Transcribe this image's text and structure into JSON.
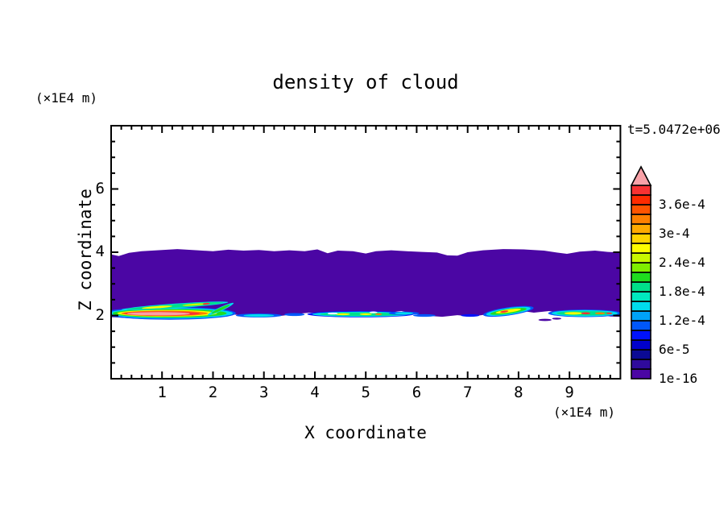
{
  "figure": {
    "title": "density of cloud",
    "time_label": "t=5.0472e+06",
    "background": "#ffffff",
    "text_color": "#000000",
    "frame_color": "#000000"
  },
  "axes": {
    "x": {
      "label": "X coordinate",
      "unit": "(×1E4 m)",
      "range": [
        0,
        10
      ],
      "ticks": [
        1,
        2,
        3,
        4,
        5,
        6,
        7,
        8,
        9
      ],
      "minor_step": 0.2
    },
    "y": {
      "label": "Z coordinate",
      "unit": "(×1E4 m)",
      "range": [
        0,
        8
      ],
      "ticks": [
        2,
        4,
        6
      ],
      "minor_step": 0.5
    }
  },
  "colorbar": {
    "labels": [
      {
        "text": "3.6e-4",
        "boundary": 18
      },
      {
        "text": "3e-4",
        "boundary": 15
      },
      {
        "text": "2.4e-4",
        "boundary": 12
      },
      {
        "text": "1.8e-4",
        "boundary": 9
      },
      {
        "text": "1.2e-4",
        "boundary": 6
      },
      {
        "text": "6e-5",
        "boundary": 3
      },
      {
        "text": "1e-16",
        "boundary": 0
      }
    ],
    "overflow_color": "#F9A2A8"
  },
  "chart_data": {
    "type": "heatmap",
    "title": "density of cloud",
    "xlabel": "X coordinate (×1E4 m)",
    "ylabel": "Z coordinate (×1E4 m)",
    "time": "t=5.0472e+06",
    "xlim": [
      0,
      10
    ],
    "ylim": [
      0,
      8
    ],
    "grid": false,
    "legend_position": "right-colorbar",
    "contour_levels": [
      "1e-16",
      "2e-5",
      "4e-5",
      "6e-5",
      "8e-5",
      "1e-4",
      "1.2e-4",
      "1.4e-4",
      "1.6e-4",
      "1.8e-4",
      "2e-4",
      "2.2e-4",
      "2.4e-4",
      "2.6e-4",
      "2.8e-4",
      "3e-4",
      "3.2e-4",
      "3.4e-4",
      "3.6e-4",
      "3.8e-4",
      "4e-4"
    ],
    "palette": [
      "#4B06A4",
      "#2F0A9C",
      "#0B0A94",
      "#0000CC",
      "#0012FC",
      "#0057FA",
      "#00A2F8",
      "#00DCEC",
      "#00E8BE",
      "#00DF8A",
      "#1FDC1F",
      "#7FEE00",
      "#C9F800",
      "#FDFD00",
      "#FFD400",
      "#FFAA00",
      "#FF8000",
      "#FF5400",
      "#FF2B00",
      "#F83232"
    ],
    "cloud_band": {
      "fill_color": "#4B06A4",
      "top_edge": [
        [
          0,
          3.93
        ],
        [
          0.15,
          3.88
        ],
        [
          0.35,
          3.98
        ],
        [
          0.6,
          4.03
        ],
        [
          0.9,
          4.06
        ],
        [
          1.3,
          4.1
        ],
        [
          1.7,
          4.06
        ],
        [
          2.0,
          4.03
        ],
        [
          2.3,
          4.08
        ],
        [
          2.6,
          4.05
        ],
        [
          2.9,
          4.07
        ],
        [
          3.2,
          4.03
        ],
        [
          3.5,
          4.06
        ],
        [
          3.8,
          4.03
        ],
        [
          4.05,
          4.09
        ],
        [
          4.25,
          3.97
        ],
        [
          4.45,
          4.05
        ],
        [
          4.75,
          4.03
        ],
        [
          5.0,
          3.96
        ],
        [
          5.2,
          4.03
        ],
        [
          5.5,
          4.06
        ],
        [
          5.8,
          4.03
        ],
        [
          6.1,
          4.01
        ],
        [
          6.4,
          3.99
        ],
        [
          6.6,
          3.9
        ],
        [
          6.8,
          3.89
        ],
        [
          7.0,
          4.0
        ],
        [
          7.3,
          4.06
        ],
        [
          7.7,
          4.1
        ],
        [
          8.1,
          4.09
        ],
        [
          8.5,
          4.05
        ],
        [
          8.75,
          3.99
        ],
        [
          8.95,
          3.95
        ],
        [
          9.2,
          4.02
        ],
        [
          9.5,
          4.05
        ],
        [
          9.75,
          4.01
        ],
        [
          10,
          3.99
        ]
      ],
      "bottom_edge": [
        [
          0,
          1.95
        ],
        [
          0.3,
          1.92
        ],
        [
          0.6,
          1.89
        ],
        [
          0.9,
          1.93
        ],
        [
          1.2,
          1.89
        ],
        [
          1.5,
          1.93
        ],
        [
          1.8,
          1.9
        ],
        [
          2.1,
          1.96
        ],
        [
          2.4,
          2.03
        ],
        [
          2.7,
          1.98
        ],
        [
          3.0,
          2.03
        ],
        [
          3.3,
          1.98
        ],
        [
          3.6,
          2.04
        ],
        [
          3.9,
          2.09
        ],
        [
          4.2,
          2.06
        ],
        [
          4.5,
          2.11
        ],
        [
          4.8,
          2.08
        ],
        [
          5.1,
          2.12
        ],
        [
          5.4,
          2.08
        ],
        [
          5.7,
          2.14
        ],
        [
          5.95,
          2.05
        ],
        [
          6.2,
          1.99
        ],
        [
          6.5,
          1.96
        ],
        [
          6.8,
          2.01
        ],
        [
          7.1,
          1.97
        ],
        [
          7.4,
          2.04
        ],
        [
          7.7,
          2.12
        ],
        [
          8.0,
          2.16
        ],
        [
          8.3,
          2.09
        ],
        [
          8.6,
          2.14
        ],
        [
          8.9,
          2.04
        ],
        [
          9.2,
          2.0
        ],
        [
          9.5,
          2.04
        ],
        [
          9.8,
          1.97
        ],
        [
          10,
          1.96
        ]
      ]
    },
    "features": [
      {
        "name": "left-plume",
        "cx": 1.15,
        "cz": 2.07,
        "rot": 0,
        "layers": [
          {
            "c": "#0057FA",
            "rx": 1.3,
            "ry": 0.2,
            "dx": 0,
            "dz": 0
          },
          {
            "c": "#00DCEC",
            "rx": 1.22,
            "ry": 0.165,
            "dx": 0.02,
            "dz": 0
          },
          {
            "c": "#1FDC1F",
            "rx": 1.12,
            "ry": 0.135,
            "dx": 0,
            "dz": 0
          },
          {
            "c": "#FDFD00",
            "rx": 0.98,
            "ry": 0.105,
            "dx": -0.05,
            "dz": 0
          },
          {
            "c": "#FF8000",
            "rx": 0.85,
            "ry": 0.085,
            "dx": -0.1,
            "dz": -0.005
          },
          {
            "c": "#F83232",
            "rx": 0.75,
            "ry": 0.07,
            "dx": -0.15,
            "dz": -0.01
          },
          {
            "c": "#F9A2A8",
            "rx": 0.62,
            "ry": 0.052,
            "dx": -0.22,
            "dz": -0.015
          }
        ]
      },
      {
        "name": "left-plume-upper-streak",
        "cx": 1.25,
        "cz": 2.3,
        "rot": -4,
        "layers": [
          {
            "c": "#00DCEC",
            "rx": 1.05,
            "ry": 0.075,
            "dx": 0,
            "dz": 0
          },
          {
            "c": "#00DF8A",
            "rx": 0.95,
            "ry": 0.055,
            "dx": 0,
            "dz": 0
          },
          {
            "c": "#FDFD00",
            "rx": 0.3,
            "ry": 0.032,
            "dx": -0.35,
            "dz": 0
          },
          {
            "c": "#C9F800",
            "rx": 0.25,
            "ry": 0.03,
            "dx": 0.4,
            "dz": 0
          },
          {
            "c": "#F83232",
            "rx": 0.07,
            "ry": 0.028,
            "dx": 0.62,
            "dz": 0
          }
        ]
      },
      {
        "name": "left-plume-tip",
        "cx": 2.15,
        "cz": 2.2,
        "rot": -25,
        "layers": [
          {
            "c": "#00DCEC",
            "rx": 0.28,
            "ry": 0.06,
            "dx": 0,
            "dz": 0
          },
          {
            "c": "#1FDC1F",
            "rx": 0.2,
            "ry": 0.04,
            "dx": 0,
            "dz": 0
          }
        ]
      },
      {
        "name": "streak-x29",
        "cx": 2.9,
        "cz": 2.0,
        "rot": 0,
        "layers": [
          {
            "c": "#0057FA",
            "rx": 0.45,
            "ry": 0.06,
            "dx": 0,
            "dz": 0
          },
          {
            "c": "#00DCEC",
            "rx": 0.3,
            "ry": 0.04,
            "dx": 0,
            "dz": 0
          }
        ]
      },
      {
        "name": "streak-x36",
        "cx": 3.6,
        "cz": 2.03,
        "rot": 0,
        "layers": [
          {
            "c": "#0057FA",
            "rx": 0.2,
            "ry": 0.045,
            "dx": 0,
            "dz": 0
          }
        ]
      },
      {
        "name": "mid-streak",
        "cx": 4.9,
        "cz": 2.04,
        "rot": 0,
        "layers": [
          {
            "c": "#0012FC",
            "rx": 1.05,
            "ry": 0.1,
            "dx": 0,
            "dz": 0
          },
          {
            "c": "#00DCEC",
            "rx": 0.95,
            "ry": 0.08,
            "dx": 0,
            "dz": 0
          },
          {
            "c": "#00DF8A",
            "rx": 0.8,
            "ry": 0.055,
            "dx": 0,
            "dz": 0
          },
          {
            "c": "#FDFD00",
            "rx": 0.14,
            "ry": 0.03,
            "dx": -0.35,
            "dz": 0
          },
          {
            "c": "#FDFD00",
            "rx": 0.12,
            "ry": 0.028,
            "dx": 0.1,
            "dz": 0
          },
          {
            "c": "#FF8000",
            "rx": 0.07,
            "ry": 0.025,
            "dx": 0.35,
            "dz": 0
          }
        ]
      },
      {
        "name": "mid-streak-tail",
        "cx": 5.75,
        "cz": 2.07,
        "rot": 0,
        "layers": [
          {
            "c": "#0057FA",
            "rx": 0.3,
            "ry": 0.05,
            "dx": 0,
            "dz": 0
          },
          {
            "c": "#00DCEC",
            "rx": 0.18,
            "ry": 0.035,
            "dx": 0,
            "dz": 0
          }
        ]
      },
      {
        "name": "speck-x61",
        "cx": 6.15,
        "cz": 2.0,
        "rot": 0,
        "layers": [
          {
            "c": "#0057FA",
            "rx": 0.22,
            "ry": 0.04,
            "dx": 0,
            "dz": 0
          }
        ]
      },
      {
        "name": "speck-x70",
        "cx": 7.05,
        "cz": 2.0,
        "rot": 0,
        "layers": [
          {
            "c": "#0012FC",
            "rx": 0.18,
            "ry": 0.04,
            "dx": 0,
            "dz": 0
          }
        ]
      },
      {
        "name": "right-squiggle",
        "cx": 7.8,
        "cz": 2.13,
        "rot": -8,
        "layers": [
          {
            "c": "#0057FA",
            "rx": 0.5,
            "ry": 0.13,
            "dx": 0,
            "dz": 0
          },
          {
            "c": "#00DCEC",
            "rx": 0.44,
            "ry": 0.105,
            "dx": 0,
            "dz": 0
          },
          {
            "c": "#1FDC1F",
            "rx": 0.36,
            "ry": 0.075,
            "dx": 0,
            "dz": 0
          },
          {
            "c": "#FDFD00",
            "rx": 0.25,
            "ry": 0.05,
            "dx": 0,
            "dz": 0.01
          },
          {
            "c": "#F83232",
            "rx": 0.08,
            "ry": 0.03,
            "dx": -0.08,
            "dz": 0.01
          }
        ]
      },
      {
        "name": "right-streak",
        "cx": 9.3,
        "cz": 2.07,
        "rot": 0,
        "layers": [
          {
            "c": "#0057FA",
            "rx": 0.72,
            "ry": 0.12,
            "dx": 0,
            "dz": 0
          },
          {
            "c": "#00DCEC",
            "rx": 0.65,
            "ry": 0.1,
            "dx": 0,
            "dz": 0
          },
          {
            "c": "#00DF8A",
            "rx": 0.55,
            "ry": 0.07,
            "dx": 0,
            "dz": 0
          },
          {
            "c": "#FDFD00",
            "rx": 0.18,
            "ry": 0.04,
            "dx": -0.22,
            "dz": 0
          },
          {
            "c": "#F83232",
            "rx": 0.09,
            "ry": 0.032,
            "dx": 0.02,
            "dz": 0
          },
          {
            "c": "#FF8000",
            "rx": 0.1,
            "ry": 0.03,
            "dx": 0.3,
            "dz": 0
          },
          {
            "c": "#F83232",
            "rx": 0.06,
            "ry": 0.025,
            "dx": 0.48,
            "dz": 0
          }
        ]
      },
      {
        "name": "detached-fleck-1",
        "cx": 8.52,
        "cz": 1.86,
        "rot": 0,
        "layers": [
          {
            "c": "#4B06A4",
            "rx": 0.13,
            "ry": 0.035,
            "dx": 0,
            "dz": 0
          }
        ]
      },
      {
        "name": "detached-fleck-2",
        "cx": 8.75,
        "cz": 1.9,
        "rot": 0,
        "layers": [
          {
            "c": "#4B06A4",
            "rx": 0.09,
            "ry": 0.03,
            "dx": 0,
            "dz": 0
          }
        ]
      },
      {
        "name": "white-hole-1",
        "cx": 4.35,
        "cz": 2.06,
        "rot": 0,
        "layers": [
          {
            "c": "#ffffff",
            "rx": 0.1,
            "ry": 0.03,
            "dx": 0,
            "dz": 0
          }
        ]
      },
      {
        "name": "white-hole-2",
        "cx": 5.15,
        "cz": 2.1,
        "rot": 0,
        "layers": [
          {
            "c": "#ffffff",
            "rx": 0.08,
            "ry": 0.027,
            "dx": 0,
            "dz": 0
          }
        ]
      }
    ]
  }
}
